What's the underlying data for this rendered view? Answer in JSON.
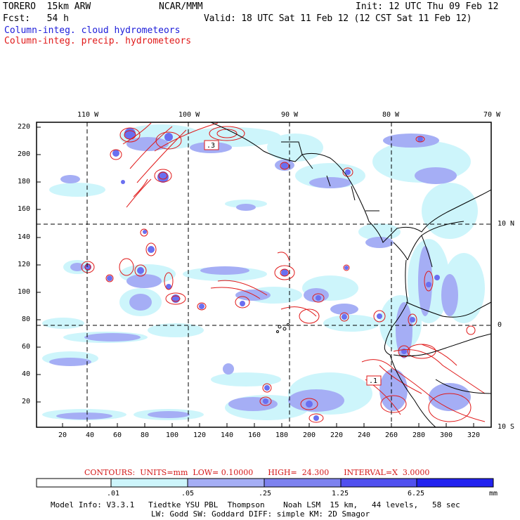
{
  "header": {
    "model": "TORERO  15km ARW",
    "org": "NCAR/MMM",
    "init": "Init: 12 UTC Thu 09 Feb 12",
    "fcst": "Fcst:   54 h",
    "valid": "Valid: 18 UTC Sat 11 Feb 12 (12 CST Sat 11 Feb 12)",
    "field1": "Column-integ. cloud hydrometeors",
    "field2": "Column-integ. precip. hydrometeors"
  },
  "map": {
    "lon_labels": [
      "110 W",
      "100 W",
      "90 W",
      "80 W",
      "70 W"
    ],
    "lat_labels": [
      "10 N",
      "0",
      "10 S"
    ],
    "y_ticks": [
      "220",
      "200",
      "180",
      "160",
      "140",
      "120",
      "100",
      "80",
      "60",
      "40",
      "20"
    ],
    "x_ticks": [
      "20",
      "40",
      "60",
      "80",
      "100",
      "120",
      "140",
      "160",
      "180",
      "200",
      "220",
      "240",
      "260",
      "280",
      "300",
      "320"
    ],
    "contour_boxes": [
      ".3",
      ".1"
    ]
  },
  "contours_info": {
    "text": "CONTOURS:  UNITS=mm  LOW= 0.10000      HIGH=  24.300      INTERVAL=X  3.0000"
  },
  "colorbar": {
    "labels": [
      ".01",
      ".05",
      ".25",
      "1.25",
      "6.25"
    ],
    "units": "mm",
    "colors": [
      "#ffffff",
      "#cdf5fb",
      "#a5aef5",
      "#7d82ef",
      "#5050ef",
      "#2222ef"
    ]
  },
  "footer": {
    "line1": "Model Info: V3.3.1   Tiedtke YSU PBL  Thompson    Noah LSM  15 km,   44 levels,   58 sec",
    "line2": "LW: Godd SW: Goddard DIFF: simple KM: 2D Smagor"
  }
}
